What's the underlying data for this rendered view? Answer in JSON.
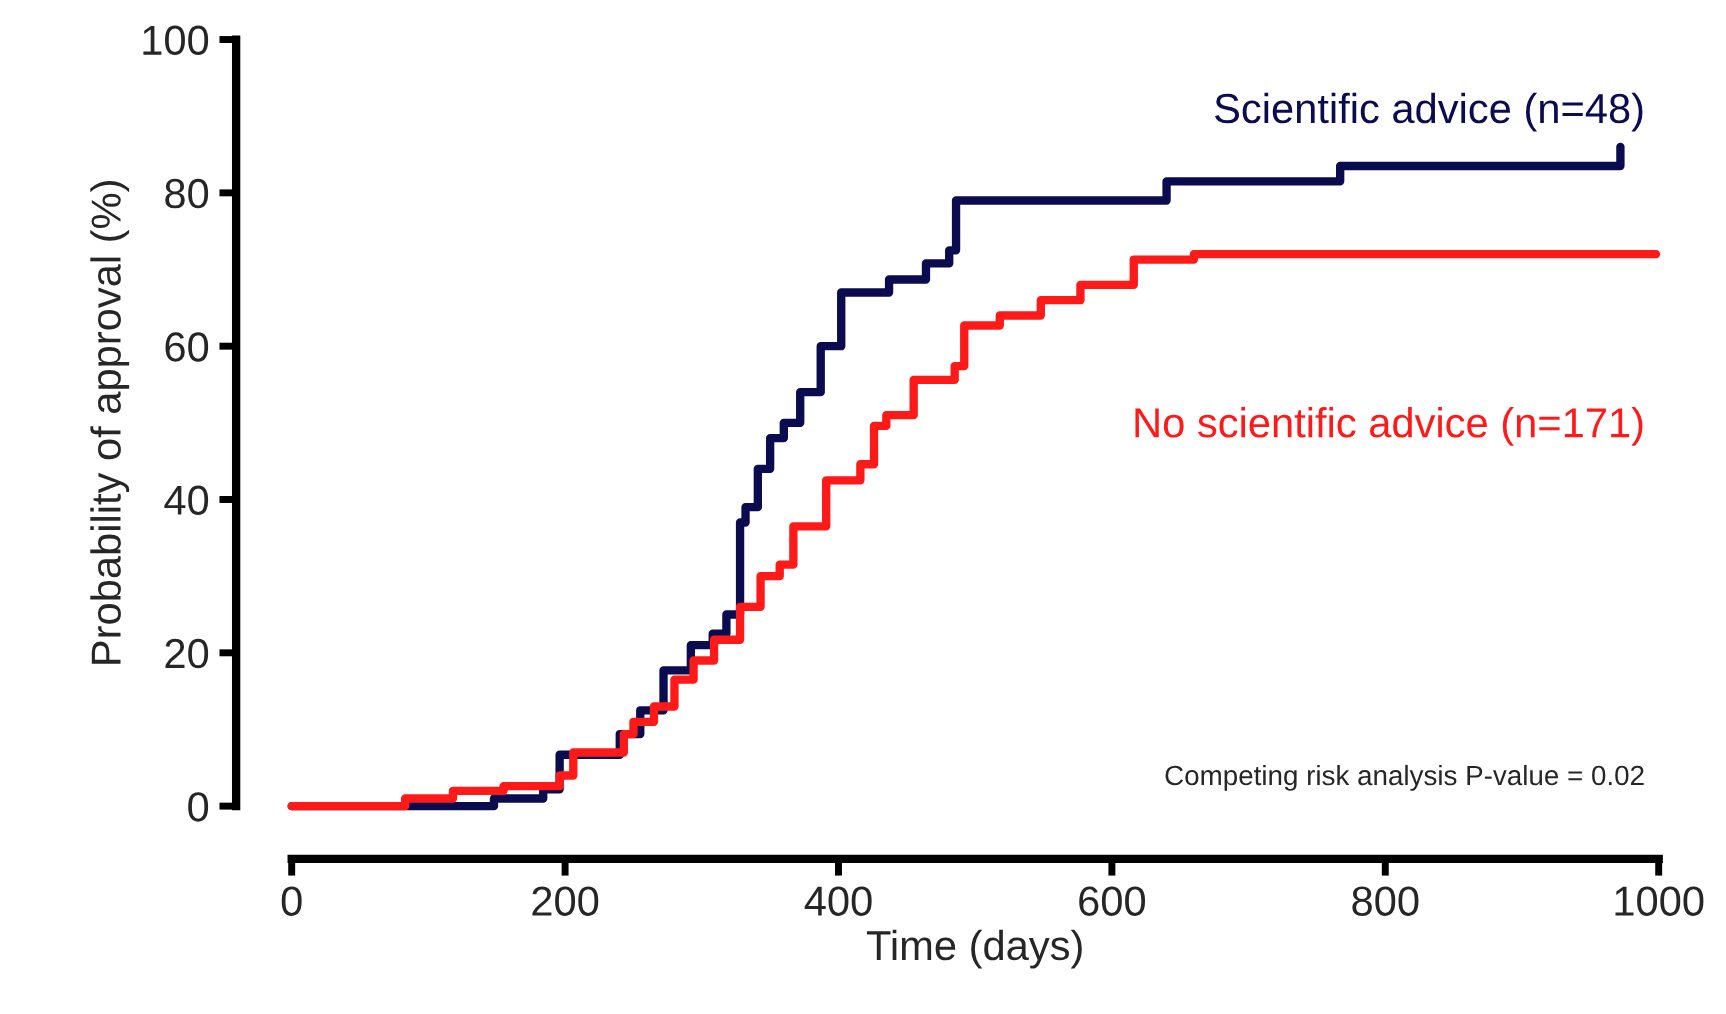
{
  "chart_data": {
    "type": "step",
    "xlabel": "Time (days)",
    "ylabel": "Probability of approval (%)",
    "xlim": [
      0,
      1000
    ],
    "xticks": [
      0,
      200,
      400,
      600,
      800,
      1000
    ],
    "ylim": [
      0,
      100
    ],
    "yticks": [
      0,
      20,
      40,
      60,
      80,
      100
    ],
    "grid": false,
    "legend": false,
    "line_style": "solid",
    "marker": "none",
    "annotations": [
      "Competing risk analysis P-value = 0.02"
    ],
    "series": [
      {
        "name": "Scientific advice (n=48)",
        "color": "#0b0b4f",
        "x": [
          0,
          148,
          184,
          196,
          240,
          255,
          272,
          292,
          308,
          318,
          328,
          332,
          341,
          350,
          360,
          372,
          387,
          402,
          437,
          464,
          481,
          486,
          640,
          767,
          972
        ],
        "values": [
          0,
          1,
          2.2,
          6.7,
          9.4,
          12.5,
          17.7,
          21,
          22.5,
          25,
          37,
          39,
          44,
          48,
          50,
          54,
          60,
          67,
          68.7,
          70.8,
          72.5,
          79,
          81.5,
          83.5,
          86
        ]
      },
      {
        "name": "No scientific advice (n=171)",
        "color": "#ff1a1a",
        "x": [
          0,
          83,
          118,
          155,
          196,
          206,
          243,
          250,
          265,
          280,
          294,
          309,
          328,
          343,
          357,
          367,
          391,
          416,
          426,
          435,
          455,
          485,
          492,
          518,
          548,
          577,
          616,
          660,
          998
        ],
        "values": [
          0,
          1,
          2,
          2.6,
          4,
          7,
          9.4,
          11,
          13,
          16.5,
          19,
          21.7,
          26,
          30,
          31.5,
          36.5,
          42.5,
          44.6,
          49.6,
          51,
          55.6,
          57.4,
          62.7,
          64,
          66,
          68,
          71.3,
          72,
          72
        ]
      }
    ]
  }
}
